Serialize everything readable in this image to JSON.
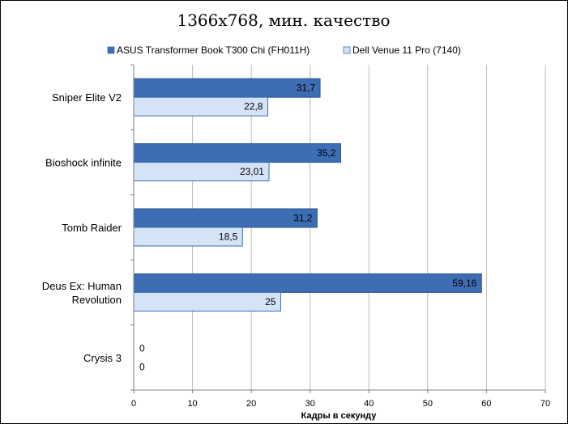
{
  "chart_data": {
    "type": "bar",
    "orientation": "horizontal",
    "title": "1366x768, мин. качество",
    "xlabel": "Кадры в секунду",
    "ylabel": "",
    "xlim": [
      0,
      70
    ],
    "x_ticks": [
      0,
      10,
      20,
      30,
      40,
      50,
      60,
      70
    ],
    "grid": true,
    "legend_position": "top",
    "categories": [
      [
        "Sniper Elite V2"
      ],
      [
        "Bioshock infinite"
      ],
      [
        "Tomb Raider"
      ],
      [
        "Deus Ex: Human",
        "Revolution"
      ],
      [
        "Crysis 3"
      ]
    ],
    "series": [
      {
        "name": "ASUS Transformer Book T300 Chi (FH011H)",
        "color": "#3d6db3",
        "values": [
          31.7,
          35.2,
          31.2,
          59.16,
          0
        ],
        "labels": [
          "31,7",
          "35,2",
          "31,2",
          "59,16",
          "0"
        ]
      },
      {
        "name": "Dell Venue 11 Pro (7140)",
        "color": "#d5e3f7",
        "values": [
          22.8,
          23.01,
          18.5,
          25,
          0
        ],
        "labels": [
          "22,8",
          "23,01",
          "18,5",
          "25",
          "0"
        ]
      }
    ]
  }
}
